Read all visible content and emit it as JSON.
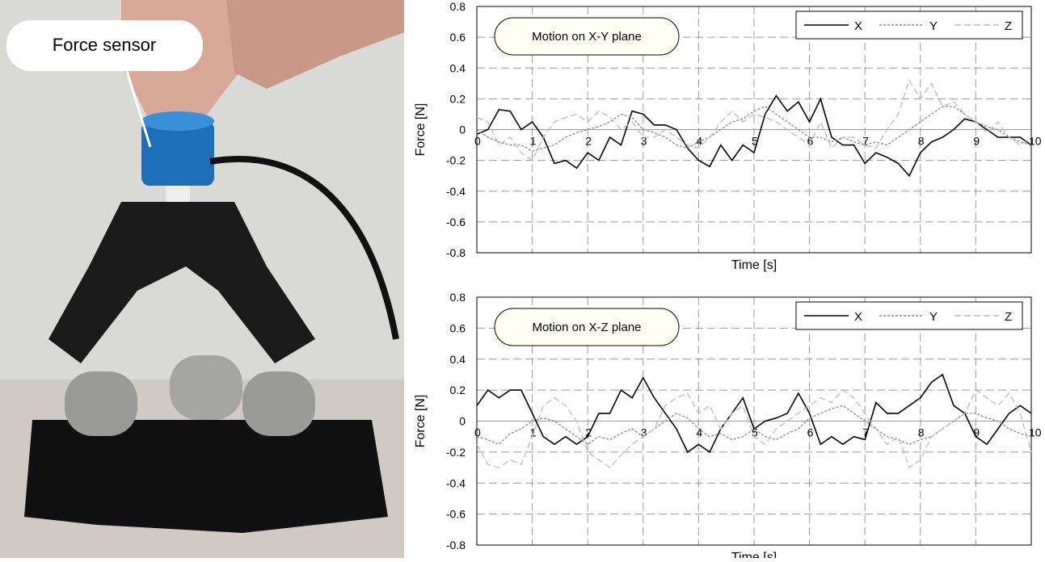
{
  "photo": {
    "label": "Force sensor"
  },
  "chart_data": [
    {
      "type": "line",
      "annotation": "Motion on X-Y plane",
      "xlabel": "Time [s]",
      "ylabel": "Force [N]",
      "grid": true,
      "legend": "upper right",
      "xlim": [
        0,
        10
      ],
      "xticks": [
        0,
        1,
        2,
        3,
        4,
        5,
        6,
        7,
        8,
        9,
        10
      ],
      "ylim": [
        -0.8,
        0.8
      ],
      "yticks": [
        0.8,
        0.6,
        0.4,
        0.2,
        0,
        -0.2,
        -0.4,
        -0.6,
        -0.8
      ],
      "x": [
        0,
        0.2,
        0.4,
        0.6,
        0.8,
        1,
        1.2,
        1.4,
        1.6,
        1.8,
        2,
        2.2,
        2.4,
        2.6,
        2.8,
        3,
        3.2,
        3.4,
        3.6,
        3.8,
        4,
        4.2,
        4.4,
        4.6,
        4.8,
        5,
        5.2,
        5.4,
        5.6,
        5.8,
        6,
        6.2,
        6.4,
        6.6,
        6.8,
        7,
        7.2,
        7.4,
        7.6,
        7.8,
        8,
        8.2,
        8.4,
        8.6,
        8.8,
        9,
        9.2,
        9.4,
        9.6,
        9.8,
        10
      ],
      "series": [
        {
          "name": "X",
          "color": "#000000",
          "values": [
            -0.03,
            0,
            0.13,
            0.12,
            0,
            0.05,
            -0.05,
            -0.22,
            -0.2,
            -0.25,
            -0.15,
            -0.2,
            -0.05,
            -0.1,
            0.12,
            0.1,
            0.03,
            0.03,
            0,
            -0.12,
            -0.2,
            -0.24,
            -0.1,
            -0.2,
            -0.1,
            -0.15,
            0.1,
            0.22,
            0.12,
            0.18,
            0.05,
            0.2,
            -0.05,
            -0.1,
            -0.1,
            -0.22,
            -0.15,
            -0.18,
            -0.22,
            -0.3,
            -0.15,
            -0.08,
            -0.05,
            0,
            0.07,
            0.05,
            0,
            -0.05,
            -0.05,
            -0.05,
            -0.1
          ]
        },
        {
          "name": "Y",
          "color": "#888888",
          "values": [
            0,
            -0.05,
            -0.08,
            -0.1,
            -0.1,
            -0.14,
            -0.12,
            -0.1,
            -0.05,
            -0.02,
            0,
            0.02,
            0.05,
            0.1,
            0.08,
            0,
            -0.02,
            -0.05,
            -0.1,
            -0.12,
            -0.08,
            -0.05,
            0,
            0.05,
            0.07,
            0.12,
            0.15,
            0.1,
            0.05,
            0,
            -0.05,
            -0.05,
            -0.08,
            -0.05,
            -0.08,
            -0.1,
            -0.08,
            -0.1,
            -0.05,
            0,
            0.05,
            0.1,
            0.15,
            0.15,
            0.1,
            0.05,
            0.02,
            0,
            -0.05,
            -0.08,
            -0.1
          ]
        },
        {
          "name": "Z",
          "color": "#bbbbbb",
          "values": [
            0.08,
            0.05,
            -0.1,
            -0.05,
            -0.15,
            -0.2,
            -0.05,
            0.05,
            0.08,
            0.1,
            0.05,
            0.12,
            0.08,
            0,
            0.05,
            -0.05,
            -0.05,
            0,
            -0.05,
            -0.1,
            -0.12,
            -0.05,
            0.05,
            0.12,
            0.05,
            0.1,
            0.08,
            0.05,
            0,
            -0.05,
            -0.1,
            0.05,
            -0.12,
            -0.05,
            -0.05,
            -0.1,
            -0.12,
            0,
            0.1,
            0.32,
            0.2,
            0.3,
            0.15,
            0.18,
            0.1,
            0.05,
            -0.02,
            0.05,
            -0.05,
            -0.1,
            -0.05
          ]
        }
      ]
    },
    {
      "type": "line",
      "annotation": "Motion on X-Z plane",
      "xlabel": "Time [s]",
      "ylabel": "Force [N]",
      "grid": true,
      "legend": "upper right",
      "xlim": [
        0,
        10
      ],
      "xticks": [
        0,
        1,
        2,
        3,
        4,
        5,
        6,
        7,
        8,
        9,
        10
      ],
      "ylim": [
        -0.8,
        0.8
      ],
      "yticks": [
        0.8,
        0.6,
        0.4,
        0.2,
        0,
        -0.2,
        -0.4,
        -0.6,
        -0.8
      ],
      "x": [
        0,
        0.2,
        0.4,
        0.6,
        0.8,
        1,
        1.2,
        1.4,
        1.6,
        1.8,
        2,
        2.2,
        2.4,
        2.6,
        2.8,
        3,
        3.2,
        3.4,
        3.6,
        3.8,
        4,
        4.2,
        4.4,
        4.6,
        4.8,
        5,
        5.2,
        5.4,
        5.6,
        5.8,
        6,
        6.2,
        6.4,
        6.6,
        6.8,
        7,
        7.2,
        7.4,
        7.6,
        7.8,
        8,
        8.2,
        8.4,
        8.6,
        8.8,
        9,
        9.2,
        9.4,
        9.6,
        9.8,
        10
      ],
      "series": [
        {
          "name": "X",
          "color": "#000000",
          "values": [
            0.1,
            0.2,
            0.15,
            0.2,
            0.2,
            0.05,
            -0.1,
            -0.15,
            -0.1,
            -0.15,
            -0.1,
            0.05,
            0.05,
            0.2,
            0.15,
            0.28,
            0.15,
            0.05,
            -0.05,
            -0.2,
            -0.15,
            -0.2,
            -0.05,
            0.05,
            0.15,
            -0.05,
            0,
            0.02,
            0.05,
            0.18,
            0.05,
            -0.15,
            -0.1,
            -0.15,
            -0.1,
            -0.12,
            0.12,
            0.05,
            0.05,
            0.1,
            0.15,
            0.25,
            0.3,
            0.1,
            0.05,
            -0.1,
            -0.15,
            -0.05,
            0.05,
            0.1,
            0.05
          ]
        },
        {
          "name": "Y",
          "color": "#888888",
          "values": [
            -0.1,
            -0.12,
            -0.15,
            -0.08,
            -0.05,
            0,
            0.02,
            0,
            -0.05,
            -0.1,
            -0.15,
            -0.1,
            -0.12,
            -0.08,
            -0.05,
            -0.1,
            -0.05,
            0,
            0.05,
            0.02,
            -0.05,
            -0.1,
            -0.08,
            -0.12,
            -0.1,
            -0.05,
            -0.1,
            -0.12,
            -0.08,
            -0.05,
            0.02,
            0.05,
            0.08,
            0.1,
            0.05,
            0,
            -0.05,
            -0.1,
            -0.12,
            -0.15,
            -0.12,
            -0.1,
            -0.05,
            0,
            0.05,
            0.05,
            0.02,
            0,
            -0.05,
            -0.08,
            -0.1
          ]
        },
        {
          "name": "Z",
          "color": "#bbbbbb",
          "values": [
            -0.15,
            -0.28,
            -0.3,
            -0.25,
            -0.28,
            -0.1,
            0.1,
            0.15,
            0.1,
            0,
            -0.2,
            -0.25,
            -0.3,
            -0.22,
            -0.15,
            -0.1,
            -0.05,
            0.1,
            0.15,
            0.18,
            0.05,
            0.1,
            -0.05,
            0.05,
            0.1,
            -0.1,
            -0.15,
            -0.05,
            0,
            0.05,
            0.1,
            0.15,
            0.12,
            0.2,
            0.15,
            0.05,
            -0.05,
            -0.15,
            -0.1,
            -0.3,
            -0.25,
            -0.1,
            -0.05,
            0,
            0.05,
            0.2,
            0.15,
            0.1,
            0.18,
            0.05,
            -0.2
          ]
        }
      ]
    }
  ]
}
